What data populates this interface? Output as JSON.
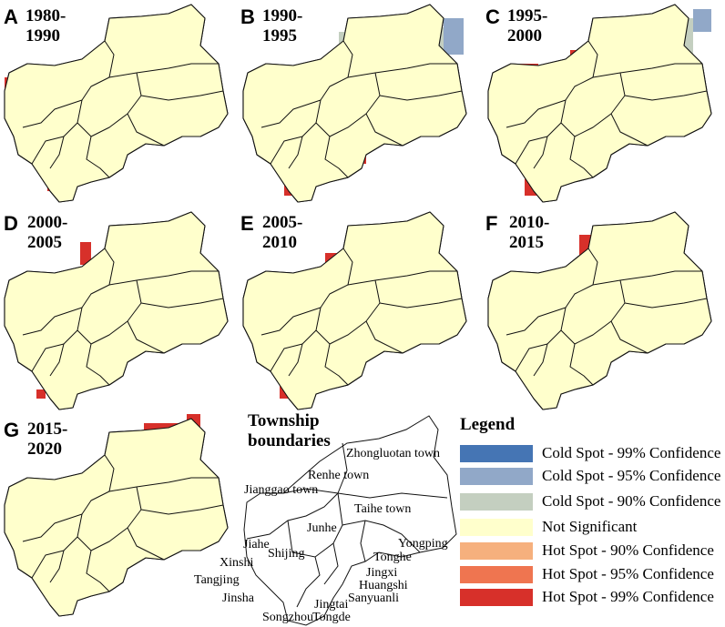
{
  "panels": [
    {
      "letter": "A",
      "period": "1980-1990"
    },
    {
      "letter": "B",
      "period": "1990-1995"
    },
    {
      "letter": "C",
      "period": "1995-2000"
    },
    {
      "letter": "D",
      "period": "2000-2005"
    },
    {
      "letter": "E",
      "period": "2005-2010"
    },
    {
      "letter": "F",
      "period": "2010-2015"
    },
    {
      "letter": "G",
      "period": "2015-2020"
    }
  ],
  "township_map": {
    "title": "Township boundaries",
    "towns": [
      "Zhongluotan town",
      "Renhe town",
      "Jianggao town",
      "Taihe town",
      "Junhe",
      "Yongping",
      "Jiahe",
      "Tonghe",
      "Shijing",
      "Jingxi",
      "Xinshi",
      "Huangshi",
      "Tangjing",
      "Sanyuanli",
      "Jinsha",
      "Jingtai",
      "Songzhou",
      "Tongde"
    ]
  },
  "legend": {
    "title": "Legend",
    "items": [
      {
        "label": "Cold Spot - 99% Confidence",
        "color": "#4575b4"
      },
      {
        "label": "Cold Spot - 95% Confidence",
        "color": "#91a8c8"
      },
      {
        "label": "Cold Spot - 90% Confidence",
        "color": "#c4cfc0"
      },
      {
        "label": "Not Significant",
        "color": "#ffffcc"
      },
      {
        "label": "Hot Spot - 90% Confidence",
        "color": "#f6b07d"
      },
      {
        "label": "Hot Spot - 95% Confidence",
        "color": "#ef7550"
      },
      {
        "label": "Hot Spot - 99% Confidence",
        "color": "#d7302a"
      }
    ]
  }
}
